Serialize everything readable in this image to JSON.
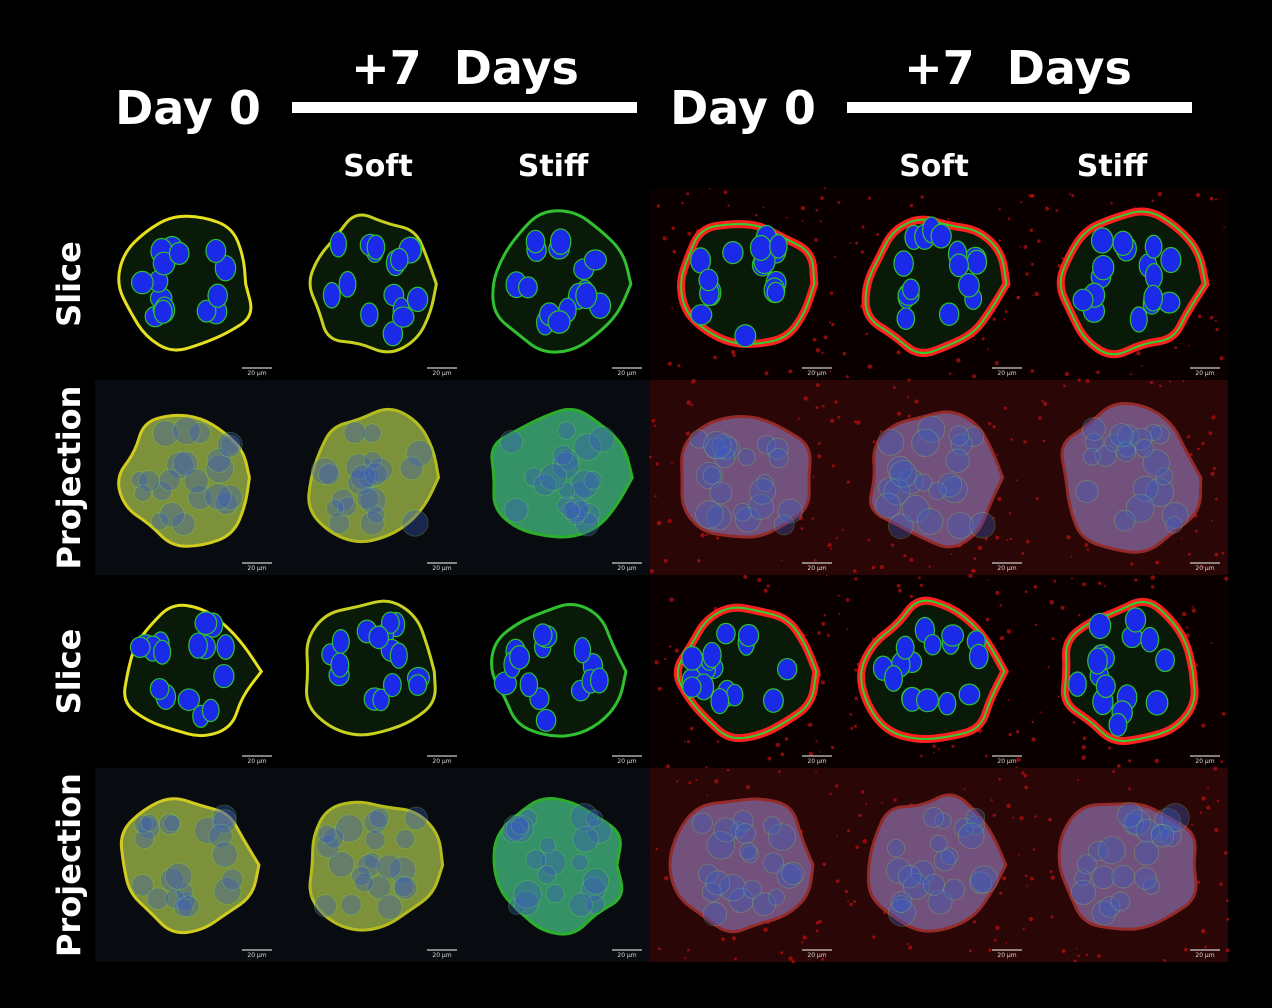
{
  "header": {
    "groups": [
      {
        "day0": "Day 0",
        "days": "+7  Days",
        "soft": "Soft",
        "stiff": "Stiff"
      },
      {
        "day0": "Day 0",
        "days": "+7  Days",
        "soft": "Soft",
        "stiff": "Stiff"
      }
    ]
  },
  "rows": [
    {
      "label": "Slice",
      "scale_bars": [
        "20 µm",
        "20 µm",
        "20 µm",
        "20 µm",
        "20 µm",
        "20 µm"
      ]
    },
    {
      "label": "Projection",
      "scale_bars": [
        "20 µm",
        "20 µm",
        "20 µm",
        "20 µm",
        "20 µm",
        "20 µm"
      ]
    },
    {
      "label": "Slice",
      "scale_bars": [
        "20 µm",
        "20 µm",
        "20 µm",
        "20 µm",
        "20 µm",
        "20 µm"
      ]
    },
    {
      "label": "Projection",
      "scale_bars": [
        "20 µm",
        "20 µm",
        "20 µm",
        "20 µm",
        "20 µm",
        "20 µm"
      ]
    }
  ]
}
